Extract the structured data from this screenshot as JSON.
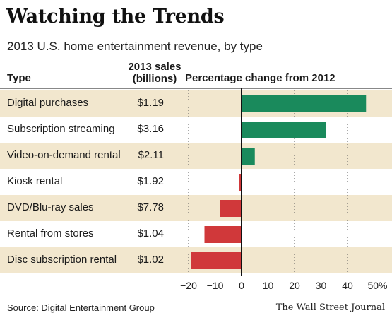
{
  "title": "Watching the Trends",
  "subtitle": "2013 U.S. home entertainment revenue, by type",
  "headers": {
    "type": "Type",
    "sales_line1": "2013 sales",
    "sales_line2": "(billions)",
    "pct": "Percentage change from 2012"
  },
  "footer": {
    "source": "Source: Digital Entertainment Group",
    "brand": "The Wall Street Journal"
  },
  "colors": {
    "positive": "#1a8a5c",
    "negative": "#d0383a",
    "shade": "#f2e7ce",
    "zero_line": "#111111"
  },
  "chart_data": {
    "type": "bar",
    "orientation": "horizontal",
    "title": "Watching the Trends",
    "subtitle": "2013 U.S. home entertainment revenue, by type",
    "xlabel": "Percentage change from 2012",
    "xlim": [
      -20,
      50
    ],
    "xticks": [
      -20,
      -10,
      0,
      10,
      20,
      30,
      40,
      50
    ],
    "xtick_labels": [
      "−20",
      "−10",
      "0",
      "10",
      "20",
      "30",
      "40",
      "50%"
    ],
    "grid": "vertical dotted",
    "categories": [
      "Digital purchases",
      "Subscription streaming",
      "Video-on-demand rental",
      "Kiosk rental",
      "DVD/Blu-ray sales",
      "Rental from stores",
      "Disc subscription rental"
    ],
    "sales": [
      "$1.19",
      "$3.16",
      "$2.11",
      "$1.92",
      "$7.78",
      "$1.04",
      "$1.02"
    ],
    "values": [
      47,
      32,
      5,
      -1,
      -8,
      -14,
      -19
    ]
  }
}
